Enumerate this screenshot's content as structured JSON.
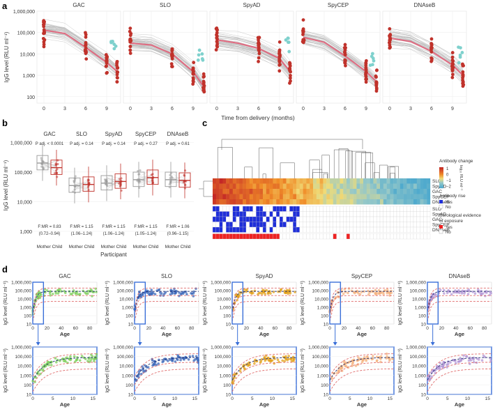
{
  "panels": {
    "a": "a",
    "b": "b",
    "c": "c",
    "d": "d"
  },
  "antigens": [
    "GAC",
    "SLO",
    "SpyAD",
    "SpyCEP",
    "DNAseB"
  ],
  "colors": {
    "red": "#c0322b",
    "cyan": "#7fd1cd",
    "grey": "#b8b8b8",
    "pink": "#e06a80",
    "blue": "#1f2fd9",
    "frame": "#3a6fd8",
    "d": [
      "#7ccd5a",
      "#3b67b8",
      "#e3a21c",
      "#f4b27e",
      "#b397d6"
    ]
  },
  "chart_data": [
    {
      "id": "a",
      "type": "scatter",
      "facets": [
        "GAC",
        "SLO",
        "SpyAD",
        "SpyCEP",
        "DNAseB"
      ],
      "ylabel": "IgG level (RLU ml⁻¹)",
      "xlabel": "Time from delivery (months)",
      "yscale": "log",
      "ylim": [
        50,
        1000000
      ],
      "yticks": [
        "1,000,000",
        "100,000",
        "10,000",
        "1,000",
        "100"
      ],
      "xticks": [
        "0",
        "3",
        "6",
        "9"
      ],
      "xlim": [
        -1,
        11
      ],
      "trend": [
        [
          [
            0,
            130000
          ],
          [
            3,
            90000
          ],
          [
            6,
            20000
          ],
          [
            9,
            4000
          ],
          [
            10.5,
            1500
          ]
        ],
        [
          [
            0,
            32000
          ],
          [
            3,
            26000
          ],
          [
            6,
            10000
          ],
          [
            9,
            1500
          ],
          [
            10.5,
            300
          ]
        ],
        [
          [
            0,
            45000
          ],
          [
            3,
            32000
          ],
          [
            6,
            18000
          ],
          [
            9,
            6000
          ],
          [
            10.5,
            1500
          ]
        ],
        [
          [
            0,
            60000
          ],
          [
            3,
            35000
          ],
          [
            6,
            8000
          ],
          [
            9,
            1500
          ],
          [
            10.5,
            500
          ]
        ],
        [
          [
            0,
            55000
          ],
          [
            3,
            38000
          ],
          [
            6,
            13000
          ],
          [
            9,
            3000
          ],
          [
            10.5,
            1000
          ]
        ]
      ]
    },
    {
      "id": "b",
      "type": "box",
      "categories": [
        "GAC",
        "SLO",
        "SpyAD",
        "SpyCEP",
        "DNAseB"
      ],
      "groups": [
        "Mother",
        "Child"
      ],
      "xlabel": "Participant",
      "ylabel": "IgG level (RLU ml⁻¹)",
      "yscale": "log",
      "yticks": [
        "1,000,000",
        "100,000",
        "10,000",
        "1,000"
      ],
      "pvalues": [
        "P adj. < 0.0001",
        "P adj. = 0.14",
        "P adj. = 0.14",
        "P adj. = 0.27",
        "P adj. = 0.61"
      ],
      "fmr": [
        "F:MR = 0.83",
        "F:MR = 1.15",
        "F:MR = 1.15",
        "F:MR = 1.15",
        "F:MR = 1.06"
      ],
      "ci": [
        "(0.72–0.94)",
        "(1.06–1.24)",
        "(1.06–1.24)",
        "(1.05–1.24)",
        "(0.96–1.15)"
      ],
      "medians": {
        "Mother": [
          200000,
          35000,
          42000,
          55000,
          55000
        ],
        "Child": [
          140000,
          38000,
          48000,
          65000,
          52000
        ]
      }
    },
    {
      "id": "c",
      "type": "heatmap",
      "rows": [
        "SLO",
        "SpyAD",
        "GAC",
        "SpyCEP",
        "DNAseB"
      ],
      "legend_title": "Antibody change",
      "scale_label": "log₁₀ RLU ml⁻¹",
      "scale_ticks": [
        "1",
        "0",
        "−1",
        "−2"
      ],
      "rise_title": "Antibody rise",
      "rise_levels": [
        "Yes",
        "No"
      ],
      "rise_rows": [
        "SLO",
        "SpyAD",
        "GAC",
        "SpyCEP",
        "DNAseB"
      ],
      "serology_title": "Serological evidence of exposure",
      "serology_levels": [
        "Yes",
        "No"
      ]
    },
    {
      "id": "d",
      "type": "scatter",
      "facets": [
        "GAC",
        "SLO",
        "SpyAD",
        "SpyCEP",
        "DNAseB"
      ],
      "ylabel": "IgG level (RLU ml⁻¹)",
      "xlabel": "Age",
      "yscale": "log",
      "top_yticks": [
        "1,000,000",
        "300,000",
        "100,000",
        "30,000",
        "10,000",
        "3,000",
        "1,000"
      ],
      "top_yticks_short": [
        "1,000,000",
        "100,000",
        "10,000",
        "1,000",
        "100",
        "10"
      ],
      "top_xticks": [
        "0",
        "20",
        "40",
        "60",
        "80"
      ],
      "zoom_yticks": [
        "1,000,000",
        "100,000",
        "10,000",
        "1,000",
        "100",
        "10"
      ],
      "zoom_xticks": [
        "0",
        "5",
        "10",
        "15"
      ]
    }
  ]
}
